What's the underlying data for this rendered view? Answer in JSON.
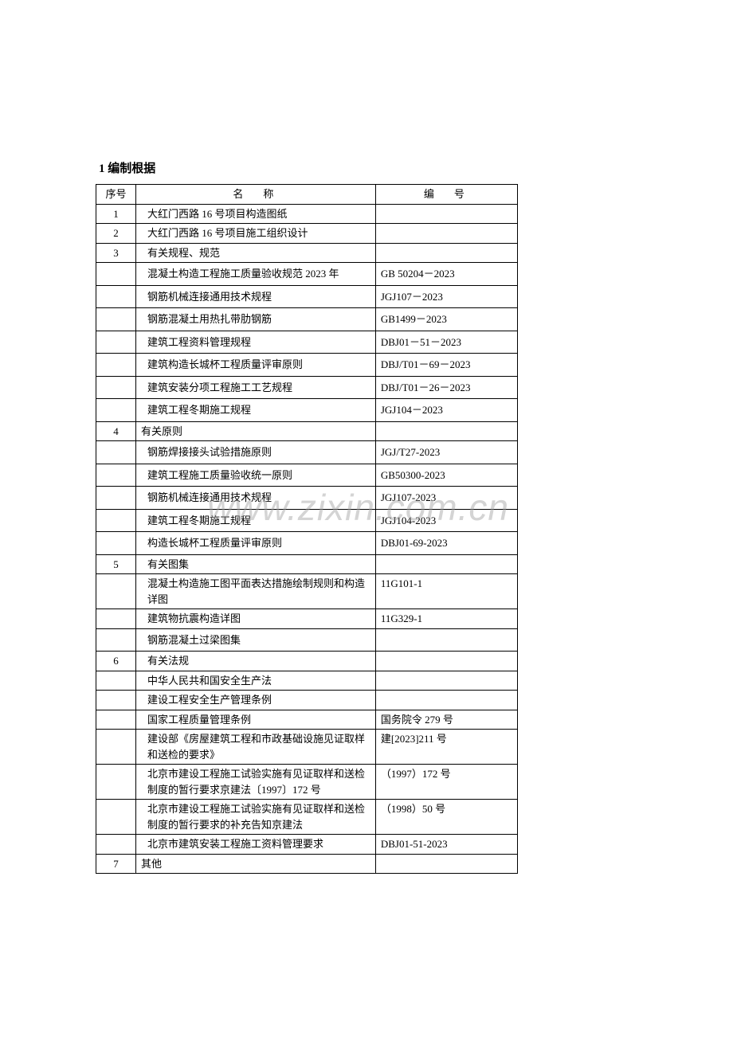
{
  "heading": "1 编制根据",
  "header": {
    "seq": "序号",
    "name": "名　称",
    "code": "编　号"
  },
  "watermark": "www.zixin.com.cn",
  "rows": [
    {
      "seq": "1",
      "name": "大红门西路 16 号项目构造图纸",
      "code": "",
      "pad": true
    },
    {
      "seq": "2",
      "name": "大红门西路 16 号项目施工组织设计",
      "code": "",
      "pad": true
    },
    {
      "seq": "3",
      "name": "有关规程、规范",
      "code": "",
      "pad": true
    },
    {
      "seq": "",
      "name": "混凝土构造工程施工质量验收规范 2023 年",
      "code": "GB 50204－2023",
      "pad": true,
      "tall": true
    },
    {
      "seq": "",
      "name": "钢筋机械连接通用技术规程",
      "code": "JGJ107－2023",
      "pad": true,
      "tall": true
    },
    {
      "seq": "",
      "name": "钢筋混凝土用热扎带肋钢筋",
      "code": "GB1499－2023",
      "pad": true,
      "tall": true
    },
    {
      "seq": "",
      "name": "建筑工程资料管理规程",
      "code": "DBJ01－51－2023",
      "pad": true,
      "tall": true
    },
    {
      "seq": "",
      "name": "建筑构造长城杯工程质量评审原则",
      "code": "DBJ/T01－69－2023",
      "pad": true,
      "tall": true
    },
    {
      "seq": "",
      "name": "建筑安装分项工程施工工艺规程",
      "code": "DBJ/T01－26－2023",
      "pad": true,
      "tall": true
    },
    {
      "seq": "",
      "name": "建筑工程冬期施工规程",
      "code": "JGJ104－2023",
      "pad": true,
      "tall": true
    },
    {
      "seq": "4",
      "name": "有关原则",
      "code": ""
    },
    {
      "seq": "",
      "name": "钢筋焊接接头试验措施原则",
      "code": "JGJ/T27-2023",
      "pad": true,
      "tall": true
    },
    {
      "seq": "",
      "name": "建筑工程施工质量验收统一原则",
      "code": "GB50300-2023",
      "pad": true,
      "tall": true
    },
    {
      "seq": "",
      "name": "钢筋机械连接通用技术规程",
      "code": "JGJ107-2023",
      "pad": true,
      "tall": true
    },
    {
      "seq": "",
      "name": "建筑工程冬期施工规程",
      "code": "JGJ104-2023",
      "pad": true,
      "tall": true
    },
    {
      "seq": "",
      "name": "构造长城杯工程质量评审原则",
      "code": "DBJ01-69-2023",
      "pad": true,
      "tall": true
    },
    {
      "seq": "5",
      "name": "有关图集",
      "code": "",
      "pad": true
    },
    {
      "seq": "",
      "name": "混凝土构造施工图平面表达措施绘制规则和构造详图",
      "code": "11G101-1",
      "pad": true
    },
    {
      "seq": "",
      "name": "建筑物抗震构造详图",
      "code": "11G329-1",
      "pad": true
    },
    {
      "seq": "",
      "name": "钢筋混凝土过梁图集",
      "code": "",
      "pad": true,
      "tall": true
    },
    {
      "seq": "6",
      "name": "有关法规",
      "code": "",
      "pad": true
    },
    {
      "seq": "",
      "name": "中华人民共和国安全生产法",
      "code": "",
      "pad": true
    },
    {
      "seq": "",
      "name": "建设工程安全生产管理条例",
      "code": "",
      "pad": true
    },
    {
      "seq": "",
      "name": "国家工程质量管理条例",
      "code": "国务院令 279 号",
      "pad": true
    },
    {
      "seq": "",
      "name": "建设部《房屋建筑工程和市政基础设施见证取样和送检的要求》",
      "code": "建[2023]211 号",
      "pad": true
    },
    {
      "seq": "",
      "name": "北京市建设工程施工试验实施有见证取样和送检制度的暂行要求京建法〔1997〕172 号",
      "code": "（1997）172 号",
      "pad": true
    },
    {
      "seq": "",
      "name": "北京市建设工程施工试验实施有见证取样和送检制度的暂行要求的补充告知京建法",
      "code": "（1998）50 号",
      "pad": true
    },
    {
      "seq": "",
      "name": "北京市建筑安装工程施工资料管理要求",
      "code": "DBJ01-51-2023",
      "pad": true
    },
    {
      "seq": "7",
      "name": "其他",
      "code": ""
    }
  ]
}
